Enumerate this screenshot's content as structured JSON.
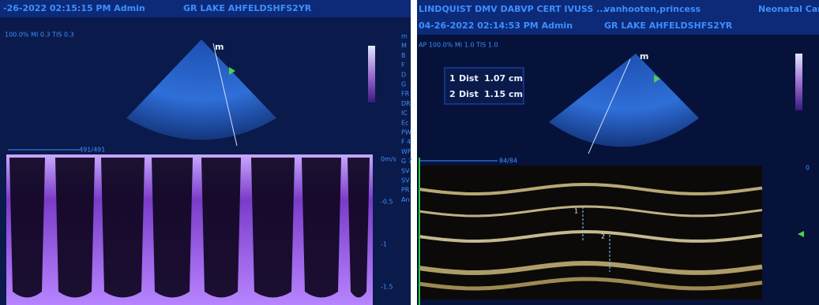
{
  "left": {
    "header": {
      "datetime": "-26-2022 02:15:15 PM Admin",
      "patient": "GR LAKE AHFELDSHFS2YR",
      "settings": "100.0%  MI 0.3  TIS 0.3"
    },
    "probe_marker": "m",
    "sweep_counter": "491/491",
    "velocity_scale": [
      "0m/s",
      "-0.5",
      "-1",
      "-1.5"
    ],
    "side_params": [
      "m",
      "M",
      "B",
      "F",
      "D",
      "G",
      "FR",
      "DR",
      "IC",
      "Ec",
      "PW",
      "F 4",
      "WF",
      "G 7",
      "SV",
      "SV",
      "PR",
      "An"
    ]
  },
  "right": {
    "header": {
      "clinic": "LINDQUIST DMV DABVP CERT IVUSS ...",
      "user": "vanhooten,princess",
      "department": "Neonatal Car",
      "datetime": "04-26-2022 02:14:53 PM Admin",
      "patient": "GR LAKE AHFELDSHFS2YR",
      "settings": "AP 100.0%  MI 1.0  TIS 1.0"
    },
    "probe_marker": "m",
    "measurements": [
      {
        "index": "1",
        "label": "Dist",
        "value": "1.07 cm"
      },
      {
        "index": "2",
        "label": "Dist",
        "value": "1.15 cm"
      }
    ],
    "sweep_counter": "84/84",
    "depth_scale": [
      "0"
    ],
    "caliper_labels": [
      "1",
      "2"
    ]
  }
}
